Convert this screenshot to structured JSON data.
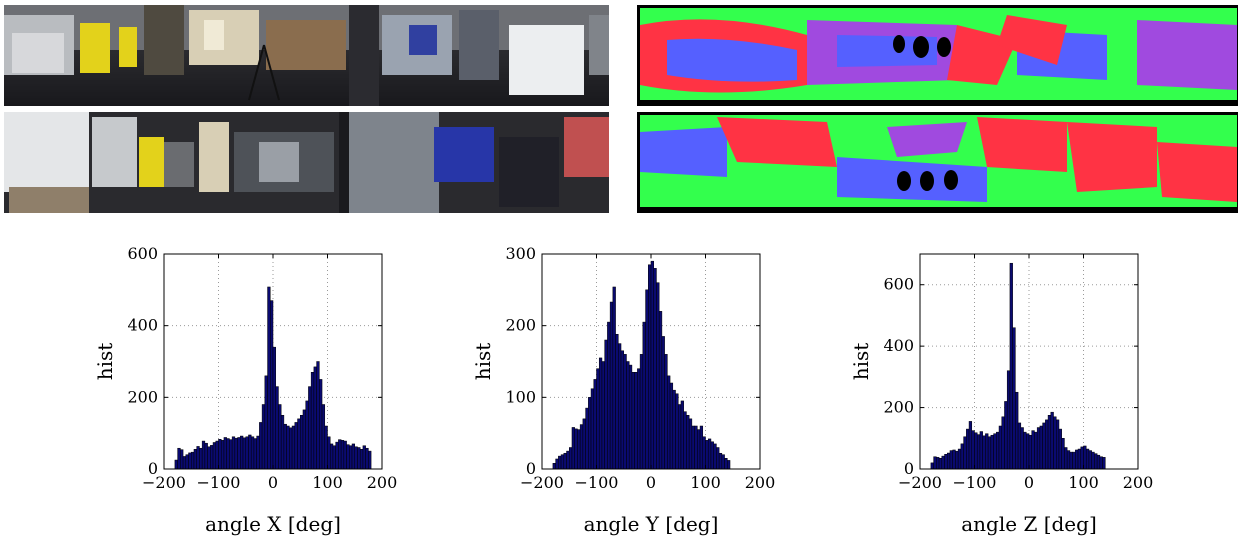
{
  "panoramas": [
    {
      "kind": "photo"
    },
    {
      "kind": "photo"
    },
    {
      "kind": "flow-visualization"
    },
    {
      "kind": "flow-visualization"
    }
  ],
  "colors": {
    "bar_fill": "#0a0a70",
    "bar_edge": "#000000",
    "grid": "#9a9a9a",
    "flow_green": "#33ff4d",
    "flow_red": "#ff3344",
    "flow_blue": "#5560ff",
    "flow_purple": "#a04adf"
  },
  "chart_data": [
    {
      "type": "bar",
      "xlabel": "angle X [deg]",
      "ylabel": "hist",
      "xlim": [
        -200,
        200
      ],
      "ylim": [
        0,
        600
      ],
      "xticks": [
        -200,
        -100,
        0,
        100,
        200
      ],
      "yticks": [
        0,
        200,
        400,
        600
      ],
      "tick_labels_x": [
        "−200",
        "−100",
        "0",
        "100",
        "200"
      ],
      "tick_labels_y": [
        "0",
        "200",
        "400",
        "600"
      ],
      "grid": true,
      "bin_width": 5,
      "bin_start": -180,
      "values": [
        25,
        58,
        54,
        35,
        40,
        45,
        47,
        55,
        63,
        58,
        78,
        72,
        62,
        66,
        74,
        78,
        83,
        80,
        88,
        85,
        82,
        90,
        86,
        88,
        92,
        87,
        90,
        95,
        90,
        85,
        92,
        130,
        180,
        260,
        508,
        470,
        340,
        230,
        180,
        150,
        125,
        120,
        115,
        120,
        130,
        140,
        150,
        165,
        190,
        230,
        270,
        285,
        300,
        250,
        180,
        120,
        90,
        70,
        65,
        75,
        82,
        80,
        78,
        68,
        65,
        70,
        62,
        60,
        55,
        65,
        58,
        50
      ]
    },
    {
      "type": "bar",
      "xlabel": "angle Y [deg]",
      "ylabel": "hist",
      "xlim": [
        -200,
        200
      ],
      "ylim": [
        0,
        300
      ],
      "xticks": [
        -200,
        -100,
        0,
        100,
        200
      ],
      "yticks": [
        0,
        100,
        200,
        300
      ],
      "tick_labels_x": [
        "−200",
        "−100",
        "0",
        "100",
        "200"
      ],
      "tick_labels_y": [
        "0",
        "100",
        "200",
        "300"
      ],
      "grid": true,
      "bin_width": 5,
      "bin_start": -180,
      "values": [
        8,
        14,
        18,
        20,
        22,
        25,
        30,
        58,
        56,
        55,
        62,
        70,
        85,
        100,
        112,
        125,
        140,
        155,
        150,
        180,
        205,
        233,
        254,
        188,
        175,
        165,
        160,
        150,
        145,
        135,
        135,
        140,
        160,
        205,
        250,
        285,
        290,
        280,
        260,
        220,
        185,
        160,
        130,
        120,
        110,
        105,
        90,
        95,
        80,
        75,
        70,
        60,
        60,
        55,
        60,
        45,
        40,
        42,
        38,
        35,
        30,
        22,
        20,
        15,
        12
      ]
    },
    {
      "type": "bar",
      "xlabel": "angle Z [deg]",
      "ylabel": "hist",
      "xlim": [
        -200,
        200
      ],
      "ylim": [
        0,
        700
      ],
      "xticks": [
        -200,
        -100,
        0,
        100,
        200
      ],
      "yticks": [
        0,
        200,
        400,
        600
      ],
      "tick_labels_x": [
        "−200",
        "−100",
        "0",
        "100",
        "200"
      ],
      "tick_labels_y": [
        "0",
        "200",
        "400",
        "600"
      ],
      "grid": true,
      "bin_width": 5,
      "bin_start": -180,
      "values": [
        20,
        40,
        38,
        35,
        42,
        48,
        52,
        60,
        62,
        58,
        65,
        82,
        105,
        130,
        155,
        125,
        118,
        112,
        122,
        108,
        115,
        105,
        110,
        115,
        120,
        140,
        170,
        220,
        320,
        670,
        460,
        250,
        150,
        135,
        120,
        115,
        110,
        125,
        120,
        135,
        140,
        150,
        160,
        175,
        185,
        170,
        160,
        130,
        100,
        70,
        60,
        55,
        55,
        62,
        65,
        72,
        75,
        65,
        60,
        55,
        50,
        45,
        40,
        38
      ]
    }
  ]
}
